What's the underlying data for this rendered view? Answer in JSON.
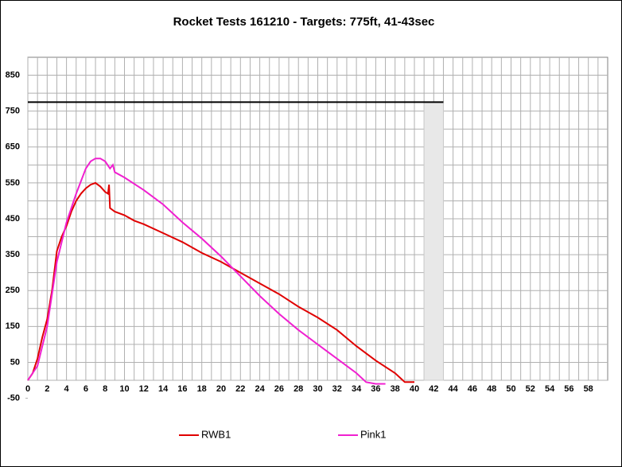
{
  "chart_data": {
    "type": "line",
    "title": "Rocket Tests 161210 - Targets: 775ft, 41-43sec",
    "xlim": [
      0,
      60
    ],
    "ylim": [
      0,
      900
    ],
    "xticks": [
      0,
      2,
      4,
      6,
      8,
      10,
      12,
      14,
      16,
      18,
      20,
      22,
      24,
      26,
      28,
      30,
      32,
      34,
      36,
      38,
      40,
      42,
      44,
      46,
      48,
      50,
      52,
      54,
      56,
      58
    ],
    "yticks": [
      -50,
      50,
      150,
      250,
      350,
      450,
      550,
      650,
      750,
      850
    ],
    "grid": true,
    "target_line": {
      "y": 775,
      "x": [
        0,
        43
      ],
      "color": "#000000"
    },
    "target_band": {
      "x": [
        41,
        43
      ],
      "color": "#e8e8e8"
    },
    "series": [
      {
        "name": "RWB1",
        "color": "#e00000",
        "x": [
          0,
          0.5,
          1,
          1.5,
          2,
          2.5,
          3,
          3.5,
          4,
          4.5,
          5,
          5.5,
          6,
          6.5,
          7,
          7.5,
          8,
          8.3,
          8.4,
          8.5,
          9,
          10,
          11,
          12,
          14,
          16,
          18,
          20,
          22,
          24,
          26,
          28,
          30,
          32,
          34,
          36,
          38,
          39,
          40
        ],
        "values": [
          0,
          20,
          60,
          120,
          170,
          250,
          360,
          400,
          430,
          470,
          500,
          520,
          535,
          545,
          550,
          540,
          525,
          520,
          545,
          480,
          470,
          460,
          445,
          435,
          410,
          385,
          355,
          330,
          300,
          270,
          240,
          205,
          175,
          140,
          95,
          55,
          20,
          -5,
          -5
        ]
      },
      {
        "name": "Pink1",
        "color": "#f020d0",
        "x": [
          0,
          1,
          2,
          3,
          4,
          5,
          6,
          6.5,
          7,
          7.5,
          8,
          8.5,
          8.8,
          9,
          10,
          12,
          14,
          16,
          18,
          20,
          22,
          24,
          26,
          28,
          30,
          32,
          34,
          35,
          36,
          37
        ],
        "values": [
          0,
          40,
          150,
          330,
          440,
          520,
          590,
          610,
          618,
          618,
          610,
          590,
          600,
          580,
          565,
          530,
          490,
          440,
          395,
          345,
          290,
          235,
          185,
          140,
          100,
          60,
          20,
          -5,
          -10,
          -10
        ]
      }
    ]
  }
}
